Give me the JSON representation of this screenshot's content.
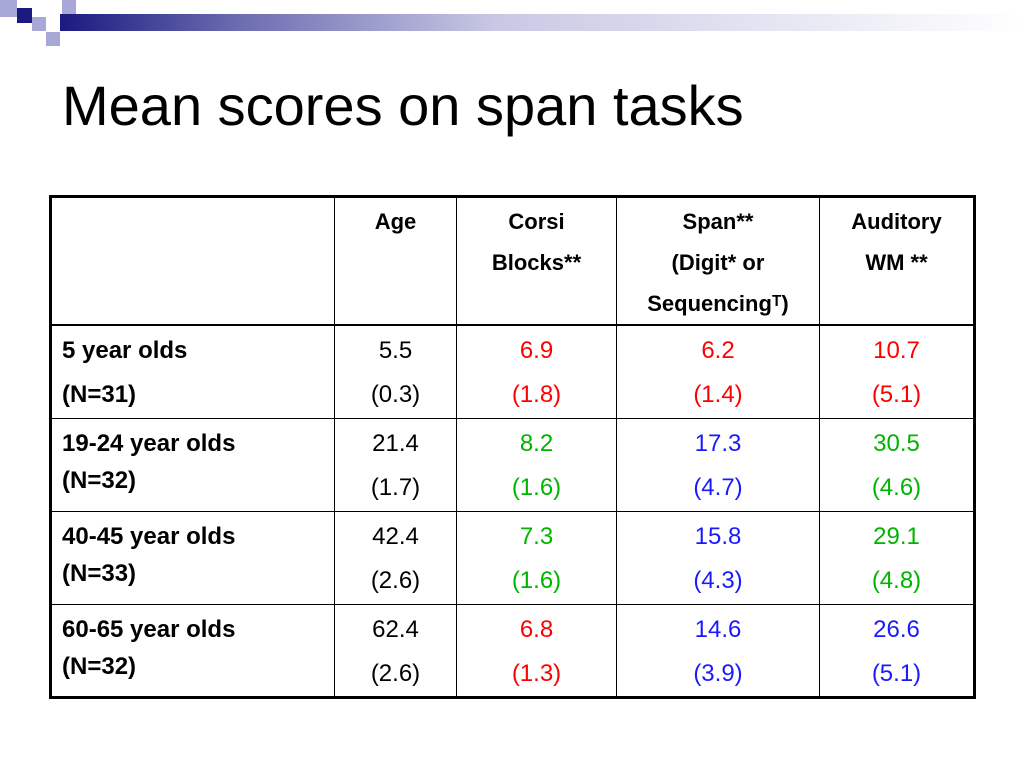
{
  "colors": {
    "red": "#ff0000",
    "green": "#00b400",
    "blue": "#1a1aff",
    "navy": "#1a1a80",
    "lavender": "#a8a8d8"
  },
  "slide": {
    "title": "Mean scores on span tasks"
  },
  "table": {
    "headers": [
      {
        "lines": [
          ""
        ]
      },
      {
        "lines": [
          "Age"
        ]
      },
      {
        "lines": [
          "Corsi",
          "Blocks**"
        ]
      },
      {
        "lines": [
          "Span**",
          "(Digit* or",
          "Sequencingᵀ)"
        ]
      },
      {
        "lines": [
          "Auditory",
          "WM **"
        ]
      }
    ],
    "rows": [
      {
        "label": [
          "5 year olds",
          "(N=31)"
        ],
        "age": {
          "mean": "5.5",
          "sd": "(0.3)"
        },
        "corsi": {
          "mean": "6.9",
          "sd": "(1.8)",
          "color": "red"
        },
        "span": {
          "mean": "6.2",
          "sd": "(1.4)",
          "color": "red"
        },
        "auditory": {
          "mean": "10.7",
          "sd": "(5.1)",
          "color": "red"
        }
      },
      {
        "label": [
          "19-24 year olds",
          "(N=32)"
        ],
        "age": {
          "mean": "21.4",
          "sd": "(1.7)"
        },
        "corsi": {
          "mean": "8.2",
          "sd": "(1.6)",
          "color": "green"
        },
        "span": {
          "mean": "17.3",
          "sd": "(4.7)",
          "color": "blue"
        },
        "auditory": {
          "mean": "30.5",
          "sd": "(4.6)",
          "color": "green"
        }
      },
      {
        "label": [
          "40-45 year olds",
          "(N=33)"
        ],
        "age": {
          "mean": "42.4",
          "sd": "(2.6)"
        },
        "corsi": {
          "mean": "7.3",
          "sd": "(1.6)",
          "color": "green"
        },
        "span": {
          "mean": "15.8",
          "sd": "(4.3)",
          "color": "blue"
        },
        "auditory": {
          "mean": "29.1",
          "sd": "(4.8)",
          "color": "green"
        }
      },
      {
        "label": [
          "60-65 year olds",
          "(N=32)"
        ],
        "age": {
          "mean": "62.4",
          "sd": "(2.6)"
        },
        "corsi": {
          "mean": "6.8",
          "sd": "(1.3)",
          "color": "red"
        },
        "span": {
          "mean": "14.6",
          "sd": "(3.9)",
          "color": "blue"
        },
        "auditory": {
          "mean": "26.6",
          "sd": "(5.1)",
          "color": "blue"
        }
      }
    ]
  }
}
